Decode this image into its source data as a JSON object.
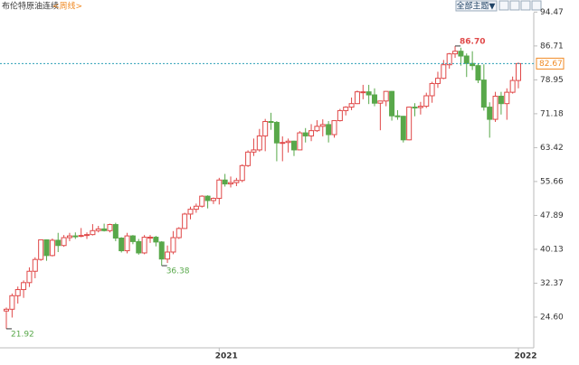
{
  "chart_data": {
    "type": "candlestick",
    "title": "布伦特原油连续",
    "period": "<周线>",
    "menu": "全部主题▼",
    "up_color": "#e04848",
    "down_color": "#58a84a",
    "last_color": "#f08a24",
    "line_color": "#2a9fb5",
    "ylim": [
      17.56,
      96.2
    ],
    "yticks": [
      {
        "value": 24.6,
        "label": "24.60"
      },
      32.37,
      40.13,
      47.89,
      55.66,
      63.42,
      71.18,
      78.95,
      86.71,
      94.47
    ],
    "categories": [
      null,
      null,
      null,
      null,
      null,
      null,
      null,
      null,
      null,
      null,
      null,
      null,
      null,
      null,
      null,
      null,
      null,
      null,
      null,
      null,
      null,
      null,
      null,
      null,
      null,
      null,
      null,
      null,
      null,
      null,
      null,
      null,
      null,
      null,
      null,
      null,
      null,
      "2021",
      null,
      null,
      null,
      null,
      null,
      null,
      null,
      null,
      null,
      null,
      null,
      null,
      null,
      null,
      null,
      null,
      null,
      null,
      null,
      null,
      null,
      null,
      null,
      null,
      null,
      null,
      null,
      null,
      null,
      null,
      null,
      null,
      null,
      null,
      null,
      null,
      null,
      null,
      null,
      null,
      null,
      null,
      null,
      null,
      null,
      null,
      null,
      null,
      null,
      null,
      null,
      "2022"
    ],
    "open": [
      26.0,
      26.4,
      29.5,
      30.9,
      32.5,
      35.1,
      37.8,
      42.3,
      38.7,
      42.2,
      41.0,
      42.8,
      43.2,
      43.1,
      43.3,
      43.5,
      44.4,
      44.8,
      44.4,
      45.8,
      42.7,
      39.8,
      43.2,
      41.9,
      39.3,
      42.9,
      42.9,
      41.8,
      37.9,
      39.5,
      42.8,
      44.9,
      48.2,
      49.3,
      50.0,
      52.3,
      51.3,
      51.8,
      56.0,
      55.1,
      55.4,
      55.9,
      59.3,
      62.4,
      62.9,
      66.1,
      69.4,
      69.2,
      64.5,
      64.6,
      64.9,
      62.9,
      66.8,
      66.1,
      67.3,
      68.3,
      68.7,
      66.4,
      69.6,
      71.9,
      72.7,
      73.5,
      76.2,
      76.2,
      75.5,
      73.6,
      74.1,
      76.3,
      70.7,
      70.6,
      65.2,
      72.7,
      72.6,
      72.9,
      75.3,
      78.1,
      79.3,
      82.4,
      84.9,
      85.5,
      84.4,
      82.7,
      82.2,
      78.9,
      72.7,
      69.9,
      75.2,
      73.5,
      76.1,
      78.8
    ],
    "high": [
      26.8,
      30.0,
      31.6,
      33.0,
      36.0,
      38.3,
      42.3,
      42.4,
      42.6,
      43.9,
      43.4,
      43.9,
      44.0,
      45.0,
      44.0,
      45.9,
      45.5,
      46.0,
      46.0,
      46.2,
      42.9,
      43.9,
      43.4,
      42.5,
      43.4,
      43.4,
      43.2,
      42.0,
      41.0,
      44.3,
      45.2,
      48.5,
      49.9,
      50.6,
      52.5,
      52.5,
      52.0,
      56.5,
      57.4,
      56.8,
      56.5,
      59.6,
      62.8,
      65.5,
      67.7,
      70.0,
      71.4,
      69.5,
      66.0,
      65.5,
      65.0,
      67.2,
      67.9,
      68.8,
      69.7,
      69.9,
      69.5,
      69.6,
      72.3,
      72.9,
      74.9,
      76.5,
      77.8,
      77.8,
      77.0,
      74.0,
      76.4,
      76.4,
      72.0,
      70.7,
      72.8,
      73.6,
      73.9,
      76.0,
      78.5,
      80.8,
      83.5,
      85.1,
      86.7,
      86.3,
      85.0,
      85.5,
      82.7,
      82.5,
      73.8,
      76.2,
      76.2,
      77.0,
      79.7,
      82.9
    ],
    "low": [
      21.92,
      24.5,
      27.7,
      29.0,
      31.5,
      33.5,
      37.5,
      37.5,
      38.5,
      39.5,
      40.7,
      42.0,
      42.5,
      42.9,
      42.5,
      43.3,
      44.0,
      44.2,
      44.0,
      42.0,
      39.4,
      39.2,
      41.3,
      38.9,
      39.0,
      41.6,
      40.8,
      36.38,
      37.0,
      39.0,
      42.5,
      44.8,
      47.0,
      48.5,
      49.7,
      49.5,
      50.5,
      50.4,
      54.5,
      54.3,
      54.6,
      55.5,
      59.0,
      61.5,
      62.5,
      62.6,
      67.5,
      60.3,
      60.3,
      62.3,
      61.5,
      62.9,
      64.6,
      64.9,
      67.0,
      66.0,
      64.6,
      65.7,
      69.4,
      70.8,
      72.0,
      73.4,
      74.5,
      73.4,
      72.9,
      67.4,
      72.9,
      69.6,
      69.8,
      64.6,
      65.1,
      70.6,
      71.0,
      72.5,
      73.7,
      77.1,
      79.1,
      81.5,
      84.0,
      82.2,
      79.6,
      81.2,
      78.2,
      71.9,
      65.7,
      69.3,
      71.0,
      69.8,
      75.8,
      77.0
    ],
    "close": [
      26.4,
      29.5,
      30.9,
      32.5,
      35.1,
      37.8,
      42.3,
      38.7,
      42.2,
      41.0,
      42.8,
      43.2,
      43.1,
      43.3,
      43.5,
      44.4,
      44.8,
      44.4,
      45.8,
      42.7,
      39.8,
      43.2,
      41.9,
      39.3,
      42.9,
      42.9,
      41.8,
      37.9,
      39.5,
      42.8,
      44.9,
      48.2,
      49.3,
      50.0,
      52.3,
      51.3,
      51.8,
      56.0,
      55.1,
      55.4,
      55.9,
      59.3,
      62.4,
      62.9,
      66.1,
      69.4,
      69.2,
      64.5,
      64.6,
      64.9,
      62.9,
      66.8,
      66.1,
      67.3,
      68.3,
      68.7,
      66.4,
      69.6,
      71.9,
      72.7,
      73.5,
      76.2,
      76.2,
      75.5,
      73.6,
      74.1,
      76.3,
      70.7,
      70.6,
      65.2,
      72.7,
      72.6,
      72.9,
      75.3,
      78.1,
      79.3,
      82.4,
      84.9,
      85.5,
      84.4,
      82.7,
      82.2,
      78.9,
      72.7,
      69.9,
      75.2,
      73.5,
      76.1,
      78.8,
      82.67
    ],
    "annotations": [
      {
        "value": 86.7,
        "label": "86.70"
      },
      36.38,
      21.92
    ],
    "last_price": 82.67
  }
}
